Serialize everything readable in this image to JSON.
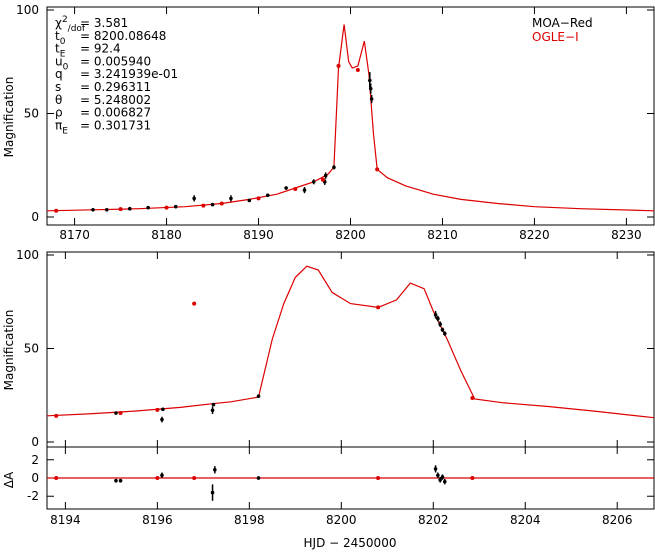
{
  "chart_data": [
    {
      "type": "line",
      "panel": "full-lightcurve",
      "ylabel": "Magnification",
      "xlim": [
        8167,
        8233
      ],
      "ylim": [
        -3,
        100
      ],
      "xticks": [
        8170,
        8180,
        8190,
        8200,
        8210,
        8220,
        8230
      ],
      "yticks": [
        0,
        50,
        100
      ],
      "params": [
        {
          "sym": "χ",
          "sup": "2",
          "sub": "/dof",
          "eq": "= 3.581"
        },
        {
          "sym": "t",
          "sub": "0",
          "eq": "= 8200.08648"
        },
        {
          "sym": "t",
          "sub": "E",
          "eq": "= 92.4"
        },
        {
          "sym": "u",
          "sub": "0",
          "eq": "= 0.005940"
        },
        {
          "sym": "q",
          "sub": "",
          "eq": "= 3.241939e-01"
        },
        {
          "sym": "s",
          "sub": "",
          "eq": "= 0.296311"
        },
        {
          "sym": "θ",
          "sub": "",
          "eq": "= 5.248002"
        },
        {
          "sym": "ρ",
          "sub": "",
          "eq": "= 0.006827"
        },
        {
          "sym": "π",
          "sub": "E",
          "eq": "= 0.301731"
        }
      ],
      "legend": [
        {
          "name": "MOA−Red",
          "color": "#000000"
        },
        {
          "name": "OGLE−I",
          "color": "#dd0000"
        }
      ],
      "model": {
        "x": [
          8167,
          8172,
          8177,
          8182,
          8186,
          8189,
          8192,
          8194,
          8196,
          8197.5,
          8198.2,
          8198.7,
          8199.3,
          8199.8,
          8200.2,
          8200.8,
          8201.5,
          8202.0,
          8202.5,
          8202.9,
          8204,
          8206,
          8209,
          8212,
          8216,
          8220,
          8225,
          8233
        ],
        "y": [
          3,
          3.5,
          4,
          5,
          6.5,
          8.5,
          11,
          14,
          17,
          20.5,
          24,
          72,
          93,
          75,
          72,
          73,
          85,
          69,
          40,
          23,
          19,
          15,
          11,
          8.5,
          6.5,
          5,
          4,
          3
        ]
      },
      "moa": {
        "x": [
          8172,
          8173.5,
          8175,
          8176,
          8178,
          8181,
          8183,
          8185,
          8187,
          8189,
          8191,
          8193,
          8195,
          8196,
          8197.2,
          8197.3,
          8198.2,
          8202.1,
          8202.2,
          8202.3
        ],
        "y": [
          3.5,
          3.5,
          3.8,
          4,
          4.5,
          5,
          9,
          6,
          9,
          8,
          10.5,
          14,
          13,
          17,
          17,
          20,
          24,
          66,
          62,
          57
        ],
        "err": [
          0.5,
          0.5,
          0.5,
          0.5,
          0.5,
          0.5,
          1.5,
          0.5,
          1.5,
          0.5,
          0.8,
          0.8,
          1.5,
          1.2,
          1.5,
          1.5,
          1,
          4,
          2.5,
          2
        ]
      },
      "ogle": {
        "x": [
          8168,
          8175,
          8180,
          8184,
          8186,
          8190,
          8194,
          8197,
          8198.7,
          8200.8,
          8202.9
        ],
        "y": [
          3,
          3.8,
          4.5,
          5.5,
          6.5,
          9,
          13.5,
          18,
          73,
          71,
          23
        ]
      }
    },
    {
      "type": "line",
      "panel": "zoomed-peak",
      "ylabel": "Magnification",
      "xlim": [
        8193.6,
        8206.8
      ],
      "ylim": [
        -3,
        100
      ],
      "yticks": [
        0,
        50,
        100
      ],
      "model": {
        "x": [
          8193.6,
          8194.5,
          8195.5,
          8196.5,
          8197.2,
          8197.6,
          8198.2,
          8198.5,
          8198.75,
          8199.0,
          8199.25,
          8199.5,
          8199.8,
          8200.2,
          8200.8,
          8201.2,
          8201.5,
          8201.8,
          8202.0,
          8202.3,
          8202.6,
          8202.9,
          8203.5,
          8204.5,
          8205.5,
          8206.8
        ],
        "y": [
          14,
          15,
          16.5,
          18.5,
          20.5,
          21.5,
          24,
          55,
          74,
          88,
          94,
          92,
          80,
          74,
          72,
          76,
          85,
          82,
          70,
          55,
          38,
          23,
          21,
          19,
          16.5,
          13
        ],
        "ylim": [
          -3,
          100
        ]
      },
      "moa": {
        "x": [
          8195.1,
          8195.2,
          8196.1,
          8196.12,
          8197.2,
          8197.22,
          8198.2,
          8202.05,
          8202.1,
          8202.15,
          8202.2,
          8202.25
        ],
        "y": [
          15.5,
          15.5,
          12,
          17.5,
          17,
          20,
          24.5,
          68,
          66,
          63,
          60,
          58
        ],
        "err": [
          0.5,
          0.5,
          1.5,
          0.8,
          2,
          0.8,
          0.8,
          2,
          1.5,
          1.5,
          1.2,
          1.2
        ]
      },
      "ogle": {
        "x": [
          8193.8,
          8195.2,
          8196.0,
          8196.8,
          8200.8,
          8202.85
        ],
        "y": [
          14,
          15.5,
          17.2,
          74,
          72,
          23.5
        ]
      }
    },
    {
      "type": "scatter",
      "panel": "residuals",
      "ylabel": "ΔA",
      "xlabel": "HJD − 2450000",
      "xlim": [
        8193.6,
        8206.8
      ],
      "ylim": [
        -3.4,
        3.4
      ],
      "xticks": [
        8194,
        8196,
        8198,
        8200,
        8202,
        8204,
        8206
      ],
      "yticks": [
        -2,
        0,
        2
      ],
      "moa": {
        "x": [
          8195.1,
          8195.2,
          8196.1,
          8197.2,
          8197.25,
          8198.2,
          8202.05,
          8202.1,
          8202.15,
          8202.2,
          8202.25
        ],
        "y": [
          -0.3,
          -0.3,
          0.3,
          -1.6,
          0.9,
          0,
          1.0,
          0.3,
          -0.2,
          0.1,
          -0.4
        ],
        "err": [
          0.2,
          0.2,
          0.3,
          0.9,
          0.4,
          0.2,
          0.4,
          0.3,
          0.3,
          0.3,
          0.3
        ]
      },
      "ogle": {
        "x": [
          8193.8,
          8196.0,
          8196.8,
          8200.8,
          8202.85
        ],
        "y": [
          0,
          0,
          0,
          0,
          0
        ]
      }
    }
  ]
}
